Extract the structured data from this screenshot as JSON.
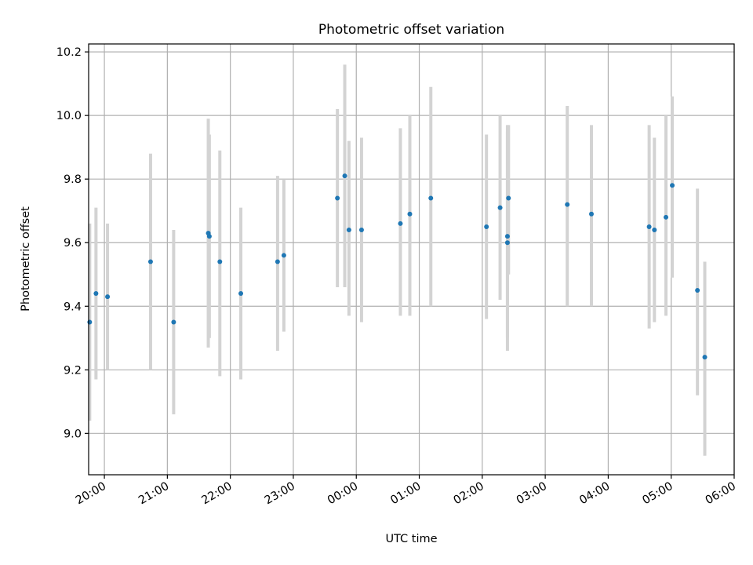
{
  "chart_data": {
    "type": "scatter",
    "title": "Photometric offset variation",
    "xlabel": "UTC time",
    "ylabel": "Photometric offset",
    "x_is_time": true,
    "xlim": [
      "19:45",
      "06:00"
    ],
    "ylim": [
      8.87,
      10.225
    ],
    "x_tick_labels": [
      "20:00",
      "21:00",
      "22:00",
      "23:00",
      "00:00",
      "01:00",
      "02:00",
      "03:00",
      "04:00",
      "05:00",
      "06:00"
    ],
    "y_tick_labels": [
      "9.0",
      "9.2",
      "9.4",
      "9.6",
      "9.8",
      "10.0",
      "10.2"
    ],
    "y_ticks": [
      9.0,
      9.2,
      9.4,
      9.6,
      9.8,
      10.0,
      10.2
    ],
    "grid": true,
    "colors": {
      "point": "#1f77b4",
      "errorbar": "#d3d3d3",
      "grid": "#b0b0b0"
    },
    "series": [
      {
        "points": [
          {
            "time": "19:46",
            "y": 9.35,
            "low": 9.04,
            "high": 9.66
          },
          {
            "time": "19:52",
            "y": 9.44,
            "low": 9.17,
            "high": 9.71
          },
          {
            "time": "20:03",
            "y": 9.43,
            "low": 9.2,
            "high": 9.66
          },
          {
            "time": "20:44",
            "y": 9.54,
            "low": 9.2,
            "high": 9.88
          },
          {
            "time": "21:06",
            "y": 9.35,
            "low": 9.06,
            "high": 9.64
          },
          {
            "time": "21:39",
            "y": 9.63,
            "low": 9.27,
            "high": 9.99
          },
          {
            "time": "21:40",
            "y": 9.62,
            "low": 9.3,
            "high": 9.94
          },
          {
            "time": "21:50",
            "y": 9.54,
            "low": 9.18,
            "high": 9.89
          },
          {
            "time": "22:10",
            "y": 9.44,
            "low": 9.17,
            "high": 9.71
          },
          {
            "time": "22:45",
            "y": 9.54,
            "low": 9.26,
            "high": 9.81
          },
          {
            "time": "22:51",
            "y": 9.56,
            "low": 9.32,
            "high": 9.8
          },
          {
            "time": "23:42",
            "y": 9.74,
            "low": 9.46,
            "high": 10.02
          },
          {
            "time": "23:49",
            "y": 9.81,
            "low": 9.46,
            "high": 10.16
          },
          {
            "time": "23:53",
            "y": 9.64,
            "low": 9.37,
            "high": 9.92
          },
          {
            "time": "00:05",
            "y": 9.64,
            "low": 9.35,
            "high": 9.93
          },
          {
            "time": "00:42",
            "y": 9.66,
            "low": 9.37,
            "high": 9.96
          },
          {
            "time": "00:51",
            "y": 9.69,
            "low": 9.37,
            "high": 10.0
          },
          {
            "time": "01:11",
            "y": 9.74,
            "low": 9.4,
            "high": 10.09
          },
          {
            "time": "02:04",
            "y": 9.65,
            "low": 9.36,
            "high": 9.94
          },
          {
            "time": "02:17",
            "y": 9.71,
            "low": 9.42,
            "high": 10.0
          },
          {
            "time": "02:24",
            "y": 9.62,
            "low": 9.26,
            "high": 9.97
          },
          {
            "time": "02:24",
            "y": 9.6,
            "low": 9.3,
            "high": 9.95
          },
          {
            "time": "02:25",
            "y": 9.74,
            "low": 9.5,
            "high": 9.97
          },
          {
            "time": "03:21",
            "y": 9.72,
            "low": 9.4,
            "high": 10.03
          },
          {
            "time": "03:44",
            "y": 9.69,
            "low": 9.4,
            "high": 9.97
          },
          {
            "time": "04:39",
            "y": 9.65,
            "low": 9.33,
            "high": 9.97
          },
          {
            "time": "04:44",
            "y": 9.64,
            "low": 9.35,
            "high": 9.93
          },
          {
            "time": "04:55",
            "y": 9.68,
            "low": 9.37,
            "high": 10.0
          },
          {
            "time": "05:01",
            "y": 9.78,
            "low": 9.49,
            "high": 10.06
          },
          {
            "time": "05:25",
            "y": 9.45,
            "low": 9.12,
            "high": 9.77
          },
          {
            "time": "05:32",
            "y": 9.24,
            "low": 8.93,
            "high": 9.54
          }
        ]
      }
    ]
  }
}
